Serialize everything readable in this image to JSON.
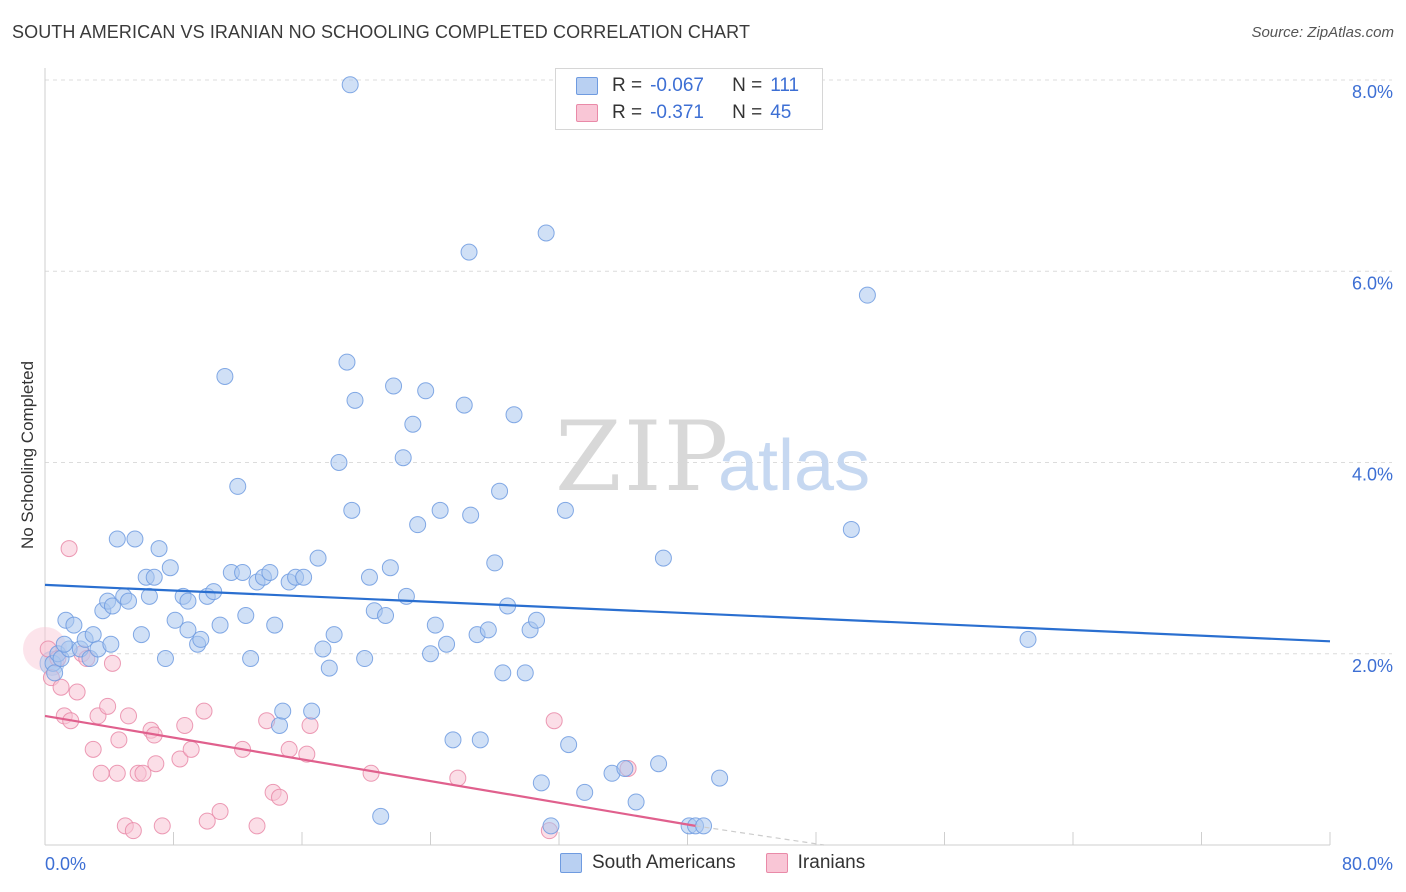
{
  "title": "SOUTH AMERICAN VS IRANIAN NO SCHOOLING COMPLETED CORRELATION CHART",
  "source": "Source: ZipAtlas.com",
  "watermark": {
    "zip": "ZIP",
    "atlas": "atlas"
  },
  "legend": {
    "rows": [
      {
        "r_label": "R =",
        "r_value": "-0.067",
        "n_label": "N =",
        "n_value": "111",
        "color": "#b9d0f2",
        "border": "#6f9be0"
      },
      {
        "r_label": "R =",
        "r_value": "-0.371",
        "n_label": "N =",
        "n_value": "45",
        "color": "#f9c6d6",
        "border": "#e98aa8"
      }
    ]
  },
  "bottom_legend": {
    "series_a": "South Americans",
    "series_b": "Iranians"
  },
  "colors": {
    "blue_fill": "#aac6ee",
    "blue_stroke": "#6f9be0",
    "blue_line": "#2a6fd0",
    "pink_fill": "#f8c3d3",
    "pink_stroke": "#e98aa8",
    "pink_line": "#e0608d",
    "axis_text": "#3d6fd4",
    "grid": "#dcdcdc"
  },
  "chart_data": {
    "type": "scatter",
    "title": "SOUTH AMERICAN VS IRANIAN NO SCHOOLING COMPLETED CORRELATION CHART",
    "ylabel": "No Schooling Completed",
    "xlim": [
      0,
      80
    ],
    "ylim": [
      0,
      8
    ],
    "x_tick_labels": [
      "0.0%",
      "80.0%"
    ],
    "y_ticks": [
      2,
      4,
      6,
      8
    ],
    "y_tick_labels": [
      "2.0%",
      "4.0%",
      "6.0%",
      "8.0%"
    ],
    "grid": true,
    "legend_position": "top-center",
    "series": [
      {
        "name": "South Americans",
        "r": -0.067,
        "n": 111,
        "trend": {
          "x": [
            0,
            80
          ],
          "y": [
            2.72,
            2.13
          ]
        },
        "points": [
          [
            0.5,
            1.9
          ],
          [
            0.6,
            1.8
          ],
          [
            0.8,
            2.0
          ],
          [
            1.0,
            1.95
          ],
          [
            1.3,
            2.35
          ],
          [
            1.5,
            2.05
          ],
          [
            1.8,
            2.3
          ],
          [
            2.2,
            2.05
          ],
          [
            2.5,
            2.15
          ],
          [
            2.8,
            1.95
          ],
          [
            3.0,
            2.2
          ],
          [
            3.3,
            2.05
          ],
          [
            3.6,
            2.45
          ],
          [
            3.9,
            2.55
          ],
          [
            4.2,
            2.5
          ],
          [
            4.5,
            3.2
          ],
          [
            4.9,
            2.6
          ],
          [
            5.2,
            2.55
          ],
          [
            5.6,
            3.2
          ],
          [
            6.0,
            2.2
          ],
          [
            6.3,
            2.8
          ],
          [
            6.8,
            2.8
          ],
          [
            7.1,
            3.1
          ],
          [
            7.5,
            1.95
          ],
          [
            7.8,
            2.9
          ],
          [
            8.1,
            2.35
          ],
          [
            8.6,
            2.6
          ],
          [
            8.9,
            2.55
          ],
          [
            9.5,
            2.1
          ],
          [
            9.7,
            2.15
          ],
          [
            10.1,
            2.6
          ],
          [
            10.5,
            2.65
          ],
          [
            10.9,
            2.3
          ],
          [
            11.2,
            4.9
          ],
          [
            11.6,
            2.85
          ],
          [
            12.0,
            3.75
          ],
          [
            12.3,
            2.85
          ],
          [
            12.5,
            2.4
          ],
          [
            12.8,
            1.95
          ],
          [
            13.2,
            2.75
          ],
          [
            13.6,
            2.8
          ],
          [
            14.0,
            2.85
          ],
          [
            14.3,
            2.3
          ],
          [
            14.6,
            1.25
          ],
          [
            14.8,
            1.4
          ],
          [
            15.2,
            2.75
          ],
          [
            15.6,
            2.8
          ],
          [
            16.1,
            2.8
          ],
          [
            16.6,
            1.4
          ],
          [
            17.0,
            3.0
          ],
          [
            17.3,
            2.05
          ],
          [
            17.7,
            1.85
          ],
          [
            18.0,
            2.2
          ],
          [
            18.3,
            4.0
          ],
          [
            18.8,
            5.05
          ],
          [
            19.1,
            3.5
          ],
          [
            19.3,
            4.65
          ],
          [
            19.9,
            1.95
          ],
          [
            20.2,
            2.8
          ],
          [
            20.5,
            2.45
          ],
          [
            20.9,
            0.3
          ],
          [
            21.2,
            2.4
          ],
          [
            21.5,
            2.9
          ],
          [
            21.7,
            4.8
          ],
          [
            22.3,
            4.05
          ],
          [
            22.5,
            2.6
          ],
          [
            22.9,
            4.4
          ],
          [
            23.2,
            3.35
          ],
          [
            23.7,
            4.75
          ],
          [
            24.0,
            2.0
          ],
          [
            24.3,
            2.3
          ],
          [
            24.6,
            3.5
          ],
          [
            25.0,
            2.1
          ],
          [
            25.4,
            1.1
          ],
          [
            26.1,
            4.6
          ],
          [
            26.4,
            6.2
          ],
          [
            26.5,
            3.45
          ],
          [
            26.9,
            2.2
          ],
          [
            27.1,
            1.1
          ],
          [
            27.6,
            2.25
          ],
          [
            28.0,
            2.95
          ],
          [
            28.3,
            3.7
          ],
          [
            28.5,
            1.8
          ],
          [
            28.8,
            2.5
          ],
          [
            29.2,
            4.5
          ],
          [
            29.9,
            1.8
          ],
          [
            30.2,
            2.25
          ],
          [
            30.6,
            2.35
          ],
          [
            30.9,
            0.65
          ],
          [
            31.2,
            6.4
          ],
          [
            31.5,
            0.2
          ],
          [
            32.4,
            3.5
          ],
          [
            32.6,
            1.05
          ],
          [
            33.6,
            0.55
          ],
          [
            35.3,
            0.75
          ],
          [
            36.1,
            0.8
          ],
          [
            36.8,
            0.45
          ],
          [
            38.2,
            0.85
          ],
          [
            38.5,
            3.0
          ],
          [
            40.1,
            0.2
          ],
          [
            40.5,
            0.2
          ],
          [
            41.0,
            0.2
          ],
          [
            42.0,
            0.7
          ],
          [
            50.2,
            3.3
          ],
          [
            51.2,
            5.75
          ],
          [
            61.2,
            2.15
          ],
          [
            19.0,
            7.95
          ],
          [
            8.9,
            2.25
          ],
          [
            4.1,
            2.1
          ],
          [
            1.2,
            2.1
          ],
          [
            6.5,
            2.6
          ]
        ]
      },
      {
        "name": "Iranians",
        "r": -0.371,
        "n": 45,
        "trend": {
          "x": [
            0,
            40.5
          ],
          "y": [
            1.35,
            0.2
          ]
        },
        "trend_ext": {
          "x": [
            40.5,
            48.5
          ],
          "y": [
            0.2,
            0.0
          ]
        },
        "points": [
          [
            0.2,
            2.05
          ],
          [
            0.4,
            1.75
          ],
          [
            0.8,
            1.95
          ],
          [
            1.0,
            1.65
          ],
          [
            1.2,
            1.35
          ],
          [
            1.5,
            3.1
          ],
          [
            1.6,
            1.3
          ],
          [
            2.0,
            1.6
          ],
          [
            2.3,
            2.0
          ],
          [
            2.6,
            1.95
          ],
          [
            3.0,
            1.0
          ],
          [
            3.3,
            1.35
          ],
          [
            3.5,
            0.75
          ],
          [
            3.9,
            1.45
          ],
          [
            4.2,
            1.9
          ],
          [
            4.5,
            0.75
          ],
          [
            4.6,
            1.1
          ],
          [
            5.0,
            0.2
          ],
          [
            5.2,
            1.35
          ],
          [
            5.5,
            0.15
          ],
          [
            5.8,
            0.75
          ],
          [
            6.1,
            0.75
          ],
          [
            6.6,
            1.2
          ],
          [
            6.8,
            1.15
          ],
          [
            6.9,
            0.85
          ],
          [
            7.3,
            0.2
          ],
          [
            8.4,
            0.9
          ],
          [
            8.7,
            1.25
          ],
          [
            9.1,
            1.0
          ],
          [
            9.9,
            1.4
          ],
          [
            10.1,
            0.25
          ],
          [
            10.9,
            0.35
          ],
          [
            12.3,
            1.0
          ],
          [
            13.2,
            0.2
          ],
          [
            13.8,
            1.3
          ],
          [
            14.2,
            0.55
          ],
          [
            14.6,
            0.5
          ],
          [
            15.2,
            1.0
          ],
          [
            16.3,
            0.95
          ],
          [
            16.5,
            1.25
          ],
          [
            20.3,
            0.75
          ],
          [
            25.7,
            0.7
          ],
          [
            31.4,
            0.15
          ],
          [
            31.7,
            1.3
          ],
          [
            36.3,
            0.8
          ]
        ]
      }
    ]
  }
}
